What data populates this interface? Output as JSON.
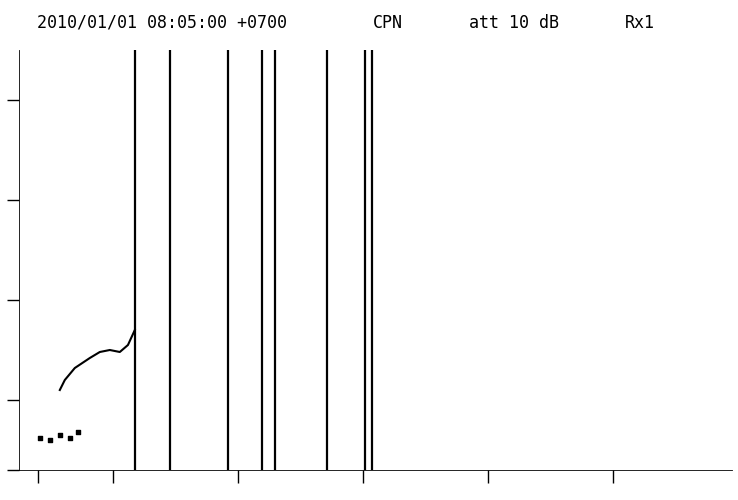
{
  "chart_data": {
    "type": "ionogram",
    "title": "2010/01/01 08:05:00 +0700",
    "annotations": [
      "CPN",
      "att 10 dB",
      "Rx1"
    ],
    "xlim": [
      0.5,
      11.9
    ],
    "xticks": [
      0.8,
      2,
      4,
      6,
      8,
      10
    ],
    "ylim": [
      30,
      450
    ],
    "yticks": [
      30,
      100,
      200,
      300,
      400
    ],
    "tick_labels": false,
    "grid": false,
    "interference": {
      "color": "#000000",
      "x": [
        2.35,
        2.91,
        3.84,
        4.38,
        4.59,
        5.42,
        6.03,
        6.14
      ]
    },
    "series": [
      {
        "type": "line",
        "color": "#000000",
        "x": [
          1.15,
          1.23,
          1.39,
          1.63,
          1.79,
          1.95,
          2.11,
          2.24,
          2.35
        ],
        "values": [
          110,
          120,
          132,
          142,
          148,
          150,
          148,
          155,
          170
        ]
      },
      {
        "type": "scatter",
        "color": "#000000",
        "marker": "s",
        "x": [
          0.83,
          0.99,
          1.15,
          1.31,
          1.44
        ],
        "values": [
          62,
          60,
          65,
          62,
          68
        ]
      }
    ]
  }
}
